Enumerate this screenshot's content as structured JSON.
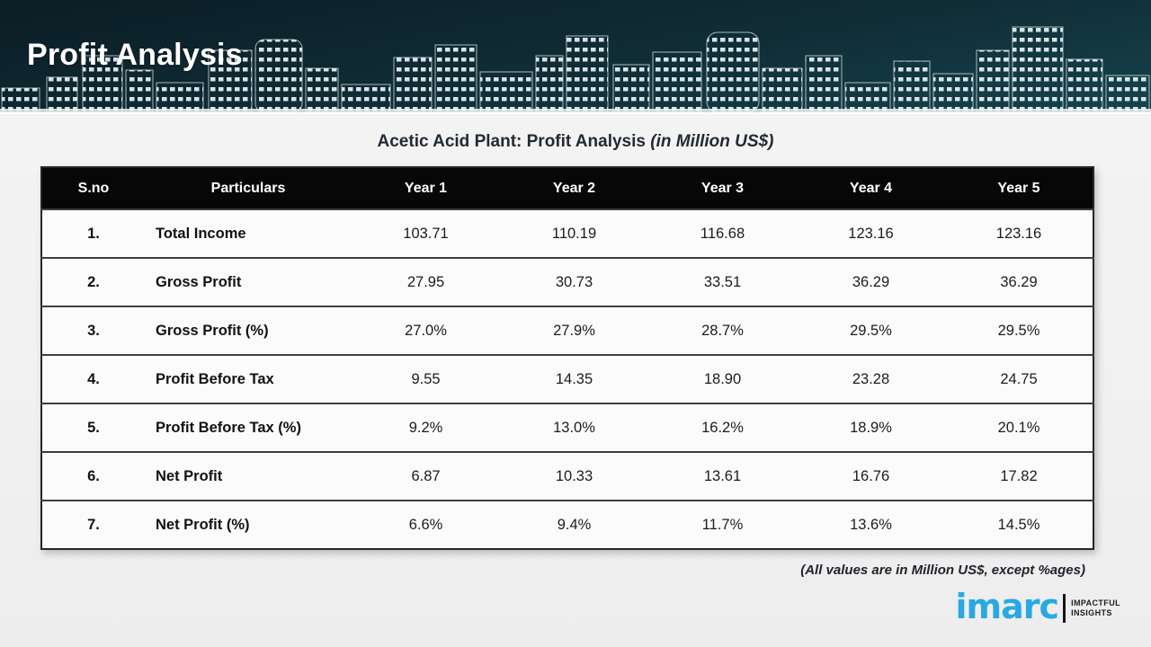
{
  "header": {
    "title": "Profit Analysis"
  },
  "table": {
    "title_main": "Acetic Acid Plant: Profit Analysis ",
    "title_note": "(in Million US$)",
    "columns": [
      "S.no",
      "Particulars",
      "Year 1",
      "Year 2",
      "Year 3",
      "Year 4",
      "Year 5"
    ],
    "rows": [
      {
        "sno": "1.",
        "particulars": "Total Income",
        "values": [
          "103.71",
          "110.19",
          "116.68",
          "123.16",
          "123.16"
        ]
      },
      {
        "sno": "2.",
        "particulars": "Gross Profit",
        "values": [
          "27.95",
          "30.73",
          "33.51",
          "36.29",
          "36.29"
        ]
      },
      {
        "sno": "3.",
        "particulars": "Gross Profit (%)",
        "values": [
          "27.0%",
          "27.9%",
          "28.7%",
          "29.5%",
          "29.5%"
        ]
      },
      {
        "sno": "4.",
        "particulars": "Profit Before Tax",
        "values": [
          "9.55",
          "14.35",
          "18.90",
          "23.28",
          "24.75"
        ]
      },
      {
        "sno": "5.",
        "particulars": "Profit Before Tax (%)",
        "values": [
          "9.2%",
          "13.0%",
          "16.2%",
          "18.9%",
          "20.1%"
        ]
      },
      {
        "sno": "6.",
        "particulars": "Net Profit",
        "values": [
          "6.87",
          "10.33",
          "13.61",
          "16.76",
          "17.82"
        ]
      },
      {
        "sno": "7.",
        "particulars": "Net Profit (%)",
        "values": [
          "6.6%",
          "9.4%",
          "11.7%",
          "13.6%",
          "14.5%"
        ]
      }
    ]
  },
  "footnote": "(All values are in Million US$, except %ages)",
  "logo": {
    "brand": "imarc",
    "tagline_line1": "IMPACTFUL",
    "tagline_line2": "INSIGHTS"
  },
  "colors": {
    "brand_blue": "#29a9e1",
    "header_dark": "#0b1d25",
    "header_teal": "#16434d",
    "table_header_bg": "#070707",
    "body_bg": "#f1f1f1"
  }
}
